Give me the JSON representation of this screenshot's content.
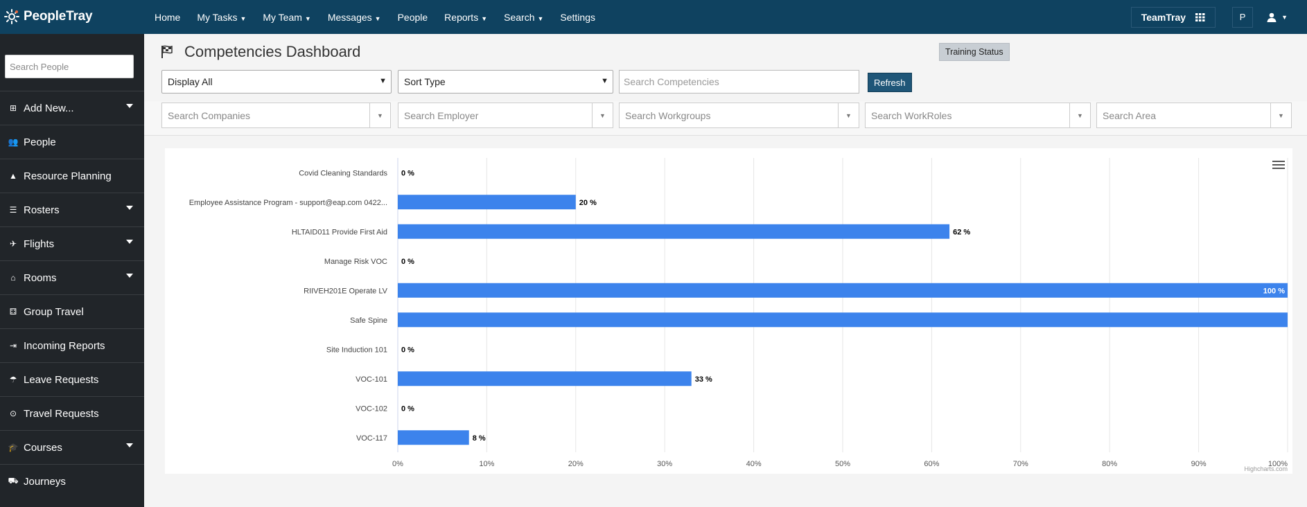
{
  "brand": {
    "name": "PeopleTray"
  },
  "nav": [
    {
      "label": "Home",
      "caret": false
    },
    {
      "label": "My Tasks",
      "caret": true
    },
    {
      "label": "My Team",
      "caret": true
    },
    {
      "label": "Messages",
      "caret": true
    },
    {
      "label": "People",
      "caret": false
    },
    {
      "label": "Reports",
      "caret": true
    },
    {
      "label": "Search",
      "caret": true
    },
    {
      "label": "Settings",
      "caret": false
    }
  ],
  "topright": {
    "teamtray_label": "TeamTray",
    "user_initial": "P"
  },
  "sidebar": {
    "search_placeholder": "Search People",
    "items": [
      {
        "label": "Add New...",
        "icon": "plus-square-icon",
        "caret": true
      },
      {
        "label": "People",
        "icon": "users-icon",
        "caret": false
      },
      {
        "label": "Resource Planning",
        "icon": "road-icon",
        "caret": false
      },
      {
        "label": "Rosters",
        "icon": "list-icon",
        "caret": true
      },
      {
        "label": "Flights",
        "icon": "plane-icon",
        "caret": true
      },
      {
        "label": "Rooms",
        "icon": "home-icon",
        "caret": true
      },
      {
        "label": "Group Travel",
        "icon": "group-icon",
        "caret": false
      },
      {
        "label": "Incoming Reports",
        "icon": "sign-in-icon",
        "caret": false
      },
      {
        "label": "Leave Requests",
        "icon": "umbrella-beach-icon",
        "caret": false
      },
      {
        "label": "Travel Requests",
        "icon": "travel-icon",
        "caret": false
      },
      {
        "label": "Courses",
        "icon": "graduation-cap-icon",
        "caret": true
      },
      {
        "label": "Journeys",
        "icon": "truck-icon",
        "caret": false
      }
    ]
  },
  "page": {
    "title": "Competencies Dashboard",
    "training_status_button": "Training Status",
    "display_select": "Display All",
    "sort_select": "Sort Type",
    "search_competencies_placeholder": "Search Competencies",
    "refresh_button": "Refresh",
    "filters": {
      "companies": "Search Companies",
      "employer": "Search Employer",
      "workgroups": "Search Workgroups",
      "workroles": "Search WorkRoles",
      "area": "Search Area"
    }
  },
  "chart_data": {
    "type": "bar",
    "orientation": "horizontal",
    "categories": [
      "Covid Cleaning Standards",
      "Employee Assistance Program - support@eap.com 0422...",
      "HLTAID011 Provide First Aid",
      "Manage Risk VOC",
      "RIIVEH201E Operate LV",
      "Safe Spine",
      "Site Induction 101",
      "VOC-101",
      "VOC-102",
      "VOC-117"
    ],
    "values": [
      0,
      20,
      62,
      0,
      100,
      100,
      0,
      33,
      0,
      8
    ],
    "data_labels": [
      "0 %",
      "20 %",
      "62 %",
      "0 %",
      "100 %",
      "",
      "0 %",
      "33 %",
      "0 %",
      "8 %"
    ],
    "xlim": [
      0,
      100
    ],
    "x_ticks": [
      "0%",
      "10%",
      "20%",
      "30%",
      "40%",
      "50%",
      "60%",
      "70%",
      "80%",
      "90%",
      "100%"
    ],
    "bar_color": "#3c83ec",
    "grid": true,
    "credits": "Highcharts.com"
  }
}
